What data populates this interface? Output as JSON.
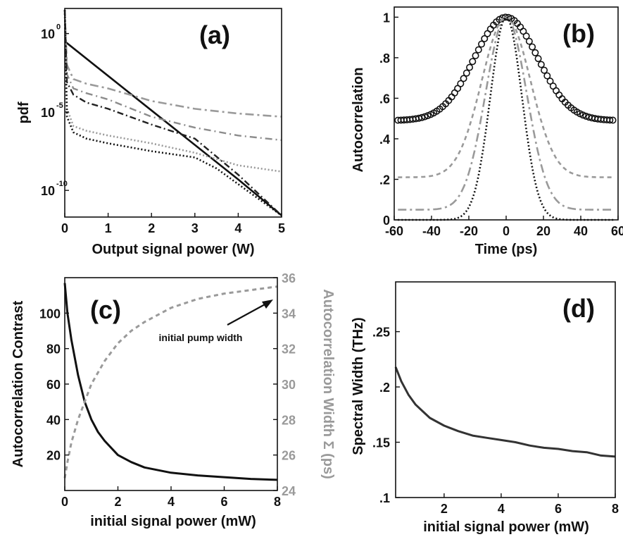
{
  "chart_data": [
    {
      "id": "a",
      "type": "line",
      "panel_label": "(a)",
      "xlabel": "Output signal power (W)",
      "ylabel": "pdf",
      "y_scale": "log",
      "xlim": [
        0,
        5
      ],
      "ylim": [
        -11.7,
        1.6
      ],
      "xticks": [
        "0",
        "1",
        "2",
        "3",
        "4",
        "5"
      ],
      "yticks": [
        {
          "value": 0,
          "base": "10",
          "exp": "0"
        },
        {
          "value": -5,
          "base": "10",
          "exp": "-5"
        },
        {
          "value": -10,
          "base": "10",
          "exp": "-10"
        }
      ],
      "series": [
        {
          "style": "solid-black",
          "x": [
            0,
            1,
            2,
            3,
            4,
            5
          ],
          "log10_y": [
            -0.5,
            -2.7,
            -4.9,
            -7.1,
            -9.3,
            -11.6
          ]
        },
        {
          "style": "dash-dot-gray",
          "x": [
            0,
            0.05,
            0.2,
            0.5,
            1,
            2,
            3,
            4,
            5
          ],
          "log10_y": [
            1.5,
            -2.0,
            -2.9,
            -3.2,
            -3.5,
            -4.3,
            -4.8,
            -5.1,
            -5.3
          ]
        },
        {
          "style": "dash-dot-gray-2",
          "x": [
            0,
            0.05,
            0.2,
            0.5,
            1,
            2,
            3,
            4,
            5
          ],
          "log10_y": [
            1.5,
            -2.6,
            -3.5,
            -3.8,
            -4.2,
            -5.3,
            -6.0,
            -6.5,
            -6.8
          ]
        },
        {
          "style": "dash-dot-black",
          "x": [
            0,
            0.05,
            0.2,
            0.5,
            1,
            2,
            3,
            4,
            5
          ],
          "log10_y": [
            1.5,
            -3.1,
            -3.9,
            -4.4,
            -4.8,
            -5.8,
            -6.7,
            -9.0,
            -11.6
          ]
        },
        {
          "style": "dotted-gray",
          "x": [
            0,
            0.05,
            0.2,
            0.5,
            1,
            2,
            3,
            4,
            5
          ],
          "log10_y": [
            1.5,
            -4.8,
            -5.9,
            -6.2,
            -6.5,
            -7.0,
            -7.6,
            -8.4,
            -8.8
          ]
        },
        {
          "style": "dotted-black",
          "x": [
            0,
            0.05,
            0.2,
            0.5,
            1,
            2,
            3,
            3.5,
            4,
            5
          ],
          "log10_y": [
            1.5,
            -5.3,
            -6.3,
            -6.7,
            -7.0,
            -7.5,
            -7.9,
            -8.6,
            -9.6,
            -11.6
          ]
        }
      ]
    },
    {
      "id": "b",
      "type": "line",
      "panel_label": "(b)",
      "xlabel": "Time (ps)",
      "ylabel": "Autocorrelation",
      "xlim": [
        -60,
        60
      ],
      "ylim": [
        0,
        1.05
      ],
      "xticks": [
        "-60",
        "-40",
        "-20",
        "0",
        "20",
        "40",
        "60"
      ],
      "yticks": [
        {
          "value": 0,
          "label": "0"
        },
        {
          "value": 0.2,
          "label": ".2"
        },
        {
          "value": 0.4,
          "label": ".4"
        },
        {
          "value": 0.6,
          "label": ".6"
        },
        {
          "value": 0.8,
          "label": ".8"
        },
        {
          "value": 1,
          "label": "1"
        }
      ],
      "series": [
        {
          "style": "circles-black",
          "baseline": 0.49,
          "width_ps": 17
        },
        {
          "style": "dashed-gray",
          "baseline": 0.21,
          "width_ps": 13
        },
        {
          "style": "dash-dot-gray",
          "baseline": 0.05,
          "width_ps": 11
        },
        {
          "style": "dotted-black",
          "baseline": 0.0,
          "width_ps": 8.5
        }
      ]
    },
    {
      "id": "c",
      "type": "line",
      "panel_label": "(c)",
      "xlabel": "initial signal power (mW)",
      "ylabel": "Autocorrelation Contrast",
      "ylabel_right": "Autocorrelation Width Σ (ps)",
      "annotation": "initial pump width",
      "xlim": [
        0,
        8
      ],
      "ylim": [
        0,
        120
      ],
      "ylim_right": [
        24,
        36
      ],
      "xticks": [
        "0",
        "2",
        "4",
        "6",
        "8"
      ],
      "yticks": [
        "20",
        "40",
        "60",
        "80",
        "100"
      ],
      "yticks_right": [
        "24",
        "26",
        "28",
        "30",
        "32",
        "34",
        "36"
      ],
      "series": [
        {
          "name_axis": "left",
          "style": "solid-black",
          "x": [
            0,
            0.1,
            0.25,
            0.5,
            0.75,
            1,
            1.25,
            1.5,
            2,
            2.5,
            3,
            4,
            5,
            6,
            7,
            8
          ],
          "y": [
            117,
            100,
            85,
            65,
            50,
            40,
            33,
            28,
            20,
            16,
            13,
            10,
            8.5,
            7.5,
            6.5,
            6
          ]
        },
        {
          "name_axis": "right",
          "style": "dashed-gray",
          "x": [
            0,
            0.1,
            0.25,
            0.5,
            0.75,
            1,
            1.5,
            2,
            2.5,
            3,
            4,
            5,
            6,
            7,
            8
          ],
          "y": [
            24.7,
            25.6,
            26.7,
            28.0,
            29.0,
            30.0,
            31.3,
            32.3,
            33.0,
            33.5,
            34.3,
            34.8,
            35.1,
            35.3,
            35.5
          ]
        }
      ]
    },
    {
      "id": "d",
      "type": "line",
      "panel_label": "(d)",
      "xlabel": "initial signal power (mW)",
      "ylabel": "Spectral Width (THz)",
      "xlim": [
        0.3,
        8
      ],
      "ylim": [
        0.1,
        0.295
      ],
      "xticks": [
        "2",
        "4",
        "6",
        "8"
      ],
      "yticks": [
        {
          "value": 0.1,
          "label": ".1"
        },
        {
          "value": 0.15,
          "label": ".15"
        },
        {
          "value": 0.2,
          "label": ".2"
        },
        {
          "value": 0.25,
          "label": ".25"
        }
      ],
      "series": [
        {
          "style": "solid-black",
          "x": [
            0.3,
            0.5,
            0.75,
            1,
            1.25,
            1.5,
            2,
            2.5,
            3,
            3.5,
            4,
            4.5,
            5,
            5.5,
            6,
            6.5,
            7,
            7.5,
            8
          ],
          "y": [
            0.218,
            0.205,
            0.193,
            0.184,
            0.178,
            0.172,
            0.165,
            0.16,
            0.156,
            0.154,
            0.152,
            0.15,
            0.147,
            0.145,
            0.144,
            0.142,
            0.141,
            0.138,
            0.137
          ]
        }
      ]
    }
  ]
}
